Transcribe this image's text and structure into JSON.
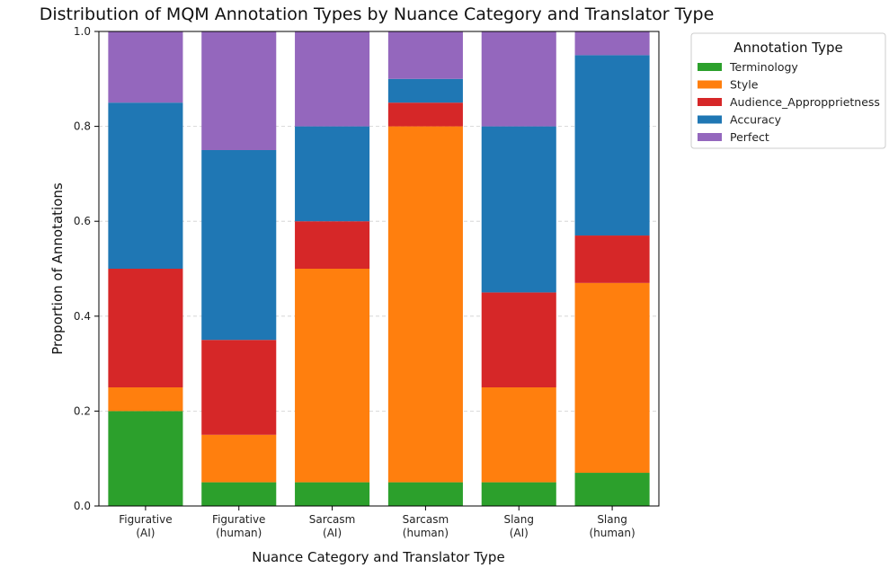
{
  "chart_data": {
    "type": "bar",
    "stacked": true,
    "title": "Distribution of MQM Annotation Types by Nuance Category and Translator Type",
    "xlabel": "Nuance Category and Translator Type",
    "ylabel": "Proportion of Annotations",
    "ylim": [
      0,
      1.0
    ],
    "yticks": [
      "0.0",
      "0.2",
      "0.4",
      "0.6",
      "0.8",
      "1.0"
    ],
    "grid": "y-dashed",
    "categories": [
      [
        "Figurative",
        "(AI)"
      ],
      [
        "Figurative",
        "(human)"
      ],
      [
        "Sarcasm",
        "(AI)"
      ],
      [
        "Sarcasm",
        "(human)"
      ],
      [
        "Slang",
        "(AI)"
      ],
      [
        "Slang",
        "(human)"
      ]
    ],
    "series": [
      {
        "name": "Terminology",
        "color": "#2ca02c",
        "values": [
          0.2,
          0.05,
          0.05,
          0.05,
          0.05,
          0.07
        ]
      },
      {
        "name": "Style",
        "color": "#ff7f0e",
        "values": [
          0.05,
          0.1,
          0.45,
          0.75,
          0.2,
          0.4
        ]
      },
      {
        "name": "Audience_Appropprietness",
        "color": "#d62728",
        "values": [
          0.25,
          0.2,
          0.1,
          0.05,
          0.2,
          0.1
        ]
      },
      {
        "name": "Accuracy",
        "color": "#1f77b4",
        "values": [
          0.35,
          0.4,
          0.2,
          0.05,
          0.35,
          0.38
        ]
      },
      {
        "name": "Perfect",
        "color": "#9467bd",
        "values": [
          0.15,
          0.25,
          0.2,
          0.1,
          0.2,
          0.05
        ]
      }
    ],
    "legend": {
      "title": "Annotation Type",
      "position": "top-right-outside"
    }
  }
}
